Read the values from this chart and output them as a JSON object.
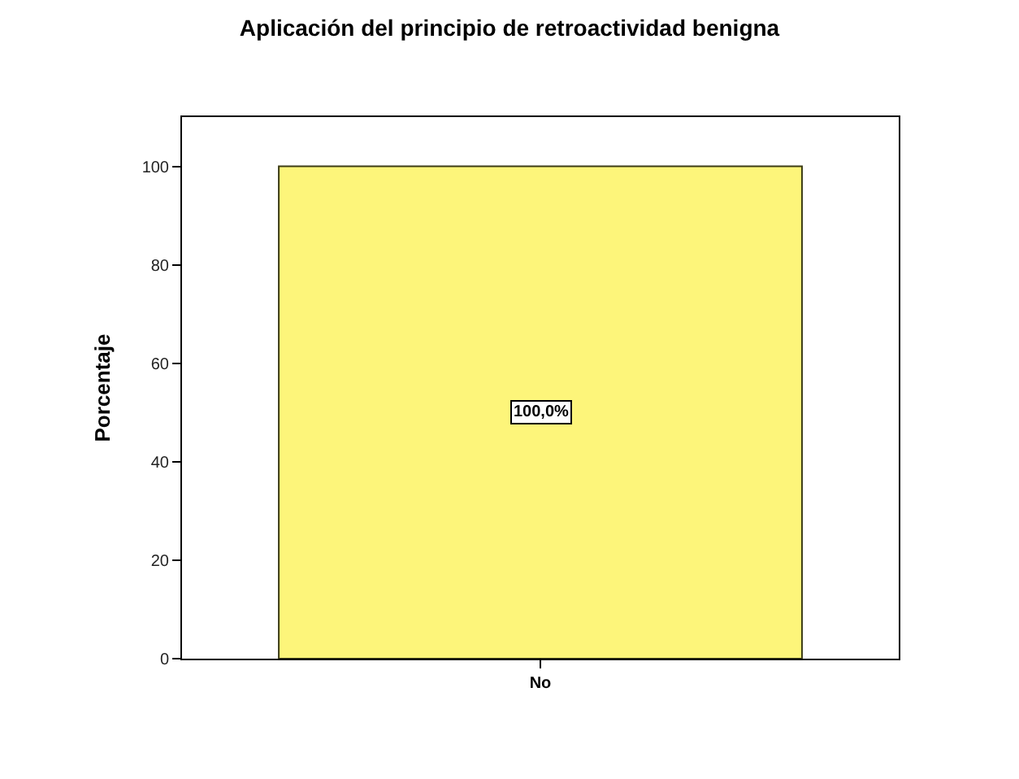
{
  "chart_data": {
    "type": "bar",
    "title": "Aplicación del principio de retroactividad benigna",
    "ylabel": "Porcentaje",
    "categories": [
      "No"
    ],
    "values": [
      100
    ],
    "color": "#fdf57a",
    "ylim": [
      0,
      110
    ],
    "yticks": [
      0,
      20,
      40,
      60,
      80,
      100
    ],
    "value_labels": [
      "100,0%"
    ]
  }
}
